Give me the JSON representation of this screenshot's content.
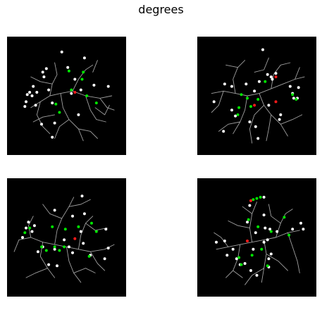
{
  "figure": {
    "title": "degrees"
  },
  "colors": {
    "background": "#ffffff",
    "panel_background": "#000000",
    "branch": "#a0a0a0",
    "node_white": "#ffffff",
    "node_green": "#00e600",
    "node_red": "#ff1a1a"
  },
  "panels": [
    {
      "white": [
        [
          0.46,
          0.13
        ],
        [
          0.3,
          0.3
        ],
        [
          0.33,
          0.27
        ],
        [
          0.31,
          0.34
        ],
        [
          0.22,
          0.42
        ],
        [
          0.19,
          0.47
        ],
        [
          0.17,
          0.49
        ],
        [
          0.21,
          0.5
        ],
        [
          0.25,
          0.47
        ],
        [
          0.16,
          0.55
        ],
        [
          0.15,
          0.59
        ],
        [
          0.24,
          0.58
        ],
        [
          0.38,
          0.56
        ],
        [
          0.57,
          0.36
        ],
        [
          0.54,
          0.48
        ],
        [
          0.62,
          0.45
        ],
        [
          0.73,
          0.41
        ],
        [
          0.85,
          0.42
        ],
        [
          0.4,
          0.73
        ],
        [
          0.38,
          0.85
        ],
        [
          0.51,
          0.26
        ],
        [
          0.65,
          0.18
        ],
        [
          0.35,
          0.45
        ],
        [
          0.6,
          0.66
        ],
        [
          0.29,
          0.74
        ]
      ],
      "green": [
        [
          0.52,
          0.29
        ],
        [
          0.64,
          0.3
        ],
        [
          0.63,
          0.36
        ],
        [
          0.54,
          0.45
        ],
        [
          0.67,
          0.5
        ],
        [
          0.41,
          0.57
        ],
        [
          0.44,
          0.64
        ],
        [
          0.75,
          0.56
        ]
      ],
      "red": [
        [
          0.57,
          0.47
        ]
      ]
    },
    {
      "white": [
        [
          0.55,
          0.11
        ],
        [
          0.59,
          0.32
        ],
        [
          0.62,
          0.34
        ],
        [
          0.63,
          0.36
        ],
        [
          0.66,
          0.31
        ],
        [
          0.14,
          0.55
        ],
        [
          0.23,
          0.4
        ],
        [
          0.29,
          0.42
        ],
        [
          0.41,
          0.4
        ],
        [
          0.52,
          0.38
        ],
        [
          0.48,
          0.46
        ],
        [
          0.78,
          0.42
        ],
        [
          0.8,
          0.48
        ],
        [
          0.85,
          0.43
        ],
        [
          0.81,
          0.52
        ],
        [
          0.84,
          0.52
        ],
        [
          0.7,
          0.66
        ],
        [
          0.69,
          0.7
        ],
        [
          0.29,
          0.62
        ],
        [
          0.32,
          0.67
        ],
        [
          0.44,
          0.72
        ],
        [
          0.49,
          0.76
        ],
        [
          0.51,
          0.86
        ],
        [
          0.6,
          0.58
        ],
        [
          0.22,
          0.8
        ]
      ],
      "green": [
        [
          0.37,
          0.49
        ],
        [
          0.42,
          0.52
        ],
        [
          0.51,
          0.53
        ],
        [
          0.45,
          0.59
        ],
        [
          0.35,
          0.6
        ],
        [
          0.34,
          0.66
        ],
        [
          0.8,
          0.49
        ],
        [
          0.83,
          0.53
        ],
        [
          0.57,
          0.38
        ]
      ],
      "red": [
        [
          0.66,
          0.34
        ],
        [
          0.48,
          0.58
        ],
        [
          0.66,
          0.55
        ]
      ]
    },
    {
      "white": [
        [
          0.18,
          0.37
        ],
        [
          0.23,
          0.4
        ],
        [
          0.21,
          0.45
        ],
        [
          0.16,
          0.42
        ],
        [
          0.13,
          0.5
        ],
        [
          0.4,
          0.27
        ],
        [
          0.63,
          0.15
        ],
        [
          0.55,
          0.32
        ],
        [
          0.65,
          0.3
        ],
        [
          0.83,
          0.43
        ],
        [
          0.85,
          0.59
        ],
        [
          0.82,
          0.68
        ],
        [
          0.52,
          0.58
        ],
        [
          0.55,
          0.63
        ],
        [
          0.64,
          0.55
        ],
        [
          0.7,
          0.65
        ],
        [
          0.4,
          0.6
        ],
        [
          0.3,
          0.58
        ],
        [
          0.42,
          0.74
        ],
        [
          0.35,
          0.73
        ],
        [
          0.26,
          0.62
        ],
        [
          0.48,
          0.52
        ],
        [
          0.62,
          0.45
        ]
      ],
      "green": [
        [
          0.19,
          0.42
        ],
        [
          0.15,
          0.46
        ],
        [
          0.38,
          0.41
        ],
        [
          0.49,
          0.43
        ],
        [
          0.6,
          0.41
        ],
        [
          0.71,
          0.38
        ],
        [
          0.75,
          0.45
        ],
        [
          0.29,
          0.58
        ],
        [
          0.4,
          0.58
        ],
        [
          0.48,
          0.58
        ],
        [
          0.69,
          0.66
        ],
        [
          0.33,
          0.61
        ],
        [
          0.44,
          0.61
        ]
      ],
      "red": [
        [
          0.57,
          0.51
        ]
      ]
    },
    {
      "white": [
        [
          0.56,
          0.16
        ],
        [
          0.44,
          0.23
        ],
        [
          0.56,
          0.31
        ],
        [
          0.42,
          0.37
        ],
        [
          0.49,
          0.46
        ],
        [
          0.57,
          0.42
        ],
        [
          0.61,
          0.43
        ],
        [
          0.67,
          0.45
        ],
        [
          0.8,
          0.43
        ],
        [
          0.89,
          0.43
        ],
        [
          0.87,
          0.38
        ],
        [
          0.59,
          0.52
        ],
        [
          0.56,
          0.54
        ],
        [
          0.47,
          0.6
        ],
        [
          0.62,
          0.64
        ],
        [
          0.6,
          0.68
        ],
        [
          0.3,
          0.6
        ],
        [
          0.25,
          0.65
        ],
        [
          0.33,
          0.68
        ],
        [
          0.23,
          0.53
        ],
        [
          0.16,
          0.54
        ],
        [
          0.36,
          0.73
        ],
        [
          0.45,
          0.78
        ],
        [
          0.6,
          0.75
        ],
        [
          0.5,
          0.82
        ],
        [
          0.4,
          0.72
        ]
      ],
      "green": [
        [
          0.47,
          0.18
        ],
        [
          0.5,
          0.17
        ],
        [
          0.53,
          0.16
        ],
        [
          0.43,
          0.35
        ],
        [
          0.51,
          0.41
        ],
        [
          0.73,
          0.33
        ],
        [
          0.62,
          0.45
        ],
        [
          0.77,
          0.48
        ],
        [
          0.35,
          0.67
        ],
        [
          0.54,
          0.6
        ],
        [
          0.37,
          0.73
        ],
        [
          0.59,
          0.74
        ],
        [
          0.46,
          0.65
        ]
      ],
      "red": [
        [
          0.45,
          0.19
        ],
        [
          0.42,
          0.53
        ]
      ]
    }
  ]
}
